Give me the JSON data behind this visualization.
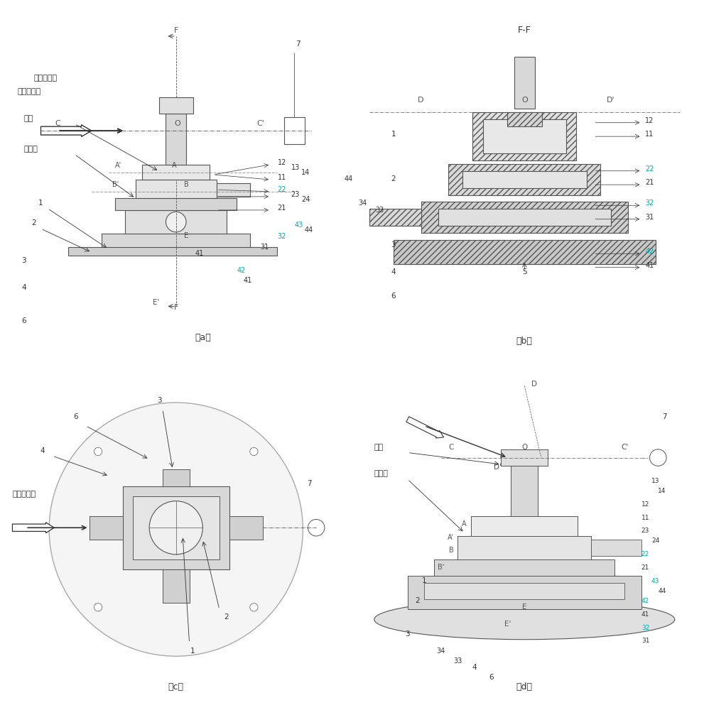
{
  "title": "",
  "background_color": "#ffffff",
  "figure_width": 9.91,
  "figure_height": 10.0,
  "panels": [
    "a",
    "b",
    "c",
    "d"
  ],
  "panel_labels": [
    "（a）",
    "（b）",
    "（c）",
    "（d）"
  ],
  "chinese_labels": {
    "neutron_beam": "入射中子束",
    "sample": "样品",
    "sample_holder": "样品架"
  },
  "line_color": "#555555",
  "hatch_color": "#aaaaaa",
  "label_color_cyan": "#00aaaa",
  "label_color_black": "#333333"
}
